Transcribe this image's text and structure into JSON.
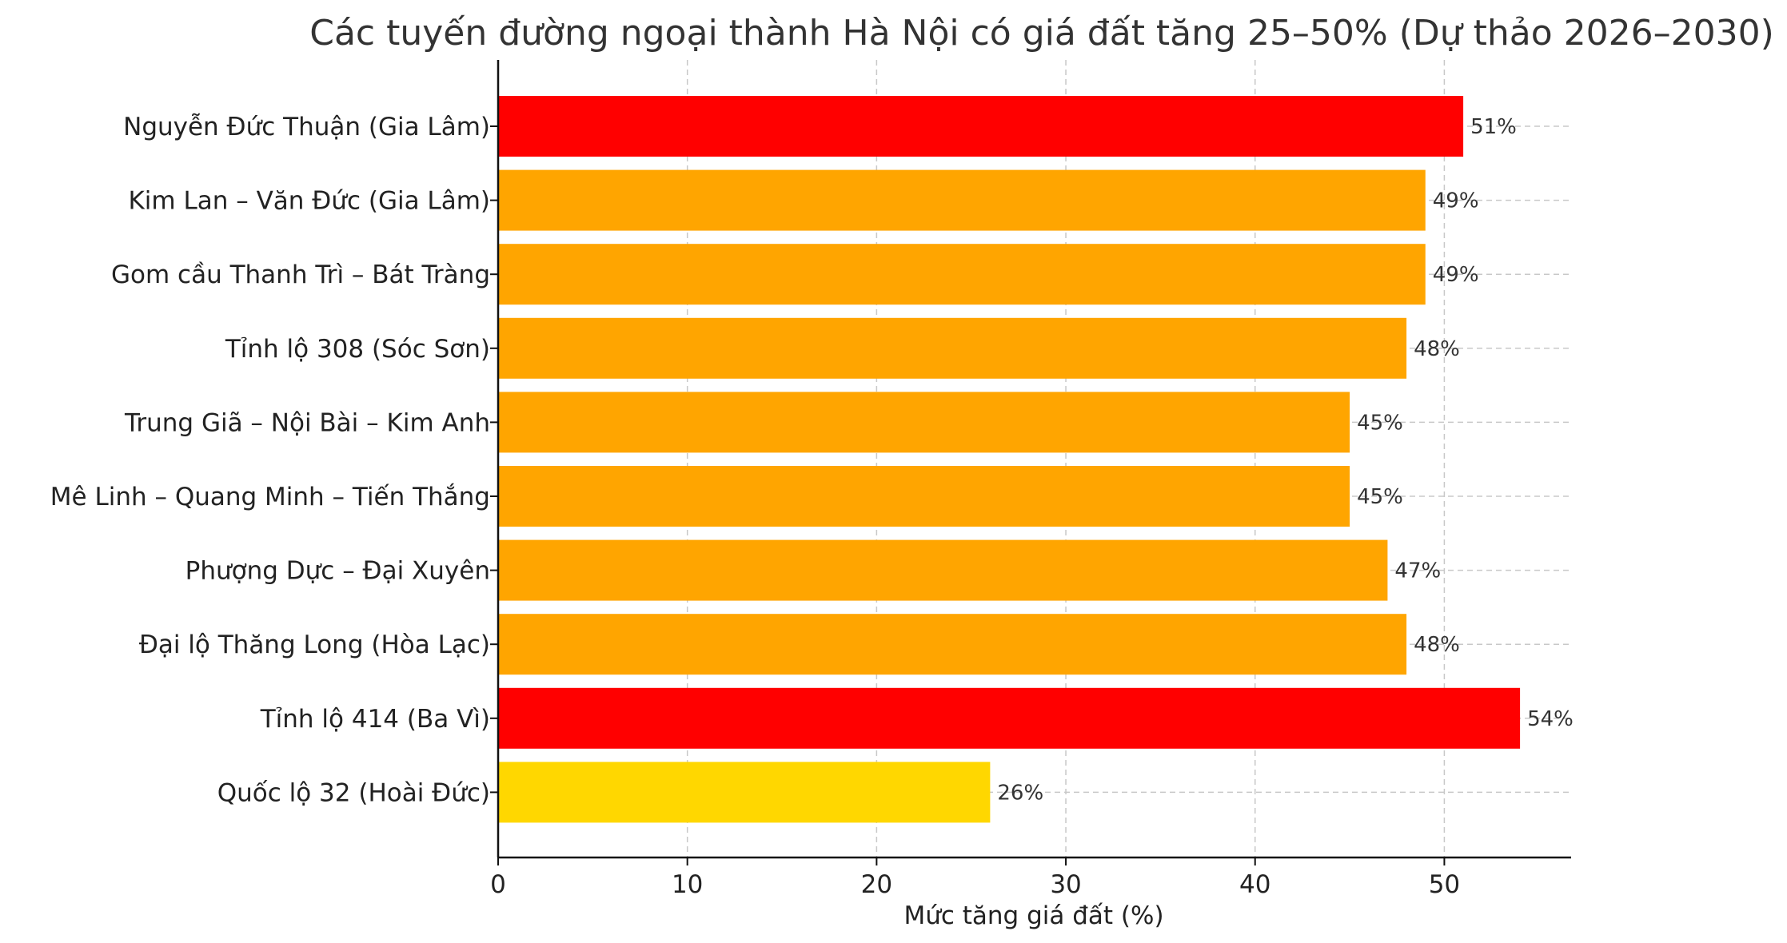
{
  "chart_data": {
    "type": "bar",
    "orientation": "horizontal",
    "title": "Các tuyến đường ngoại thành Hà Nội có giá đất tăng 25–50% (Dự thảo 2026–2030)",
    "xlabel": "Mức tăng giá đất (%)",
    "ylabel": "",
    "xlim": [
      0,
      56.7
    ],
    "xticks": [
      0,
      10,
      20,
      30,
      40,
      50
    ],
    "grid": true,
    "categories": [
      "Nguyễn Đức Thuận (Gia Lâm)",
      "Kim Lan – Văn Đức (Gia Lâm)",
      "Gom cầu Thanh Trì – Bát Tràng",
      "Tỉnh lộ 308 (Sóc Sơn)",
      "Trung Giã – Nội Bài – Kim Anh",
      "Mê Linh – Quang Minh – Tiến Thắng",
      "Phượng Dực – Đại Xuyên",
      "Đại lộ Thăng Long (Hòa Lạc)",
      "Tỉnh lộ 414 (Ba Vì)",
      "Quốc lộ 32 (Hoài Đức)"
    ],
    "values": [
      51,
      49,
      49,
      48,
      45,
      45,
      47,
      48,
      54,
      26
    ],
    "value_labels": [
      "51%",
      "49%",
      "49%",
      "48%",
      "45%",
      "45%",
      "47%",
      "48%",
      "54%",
      "26%"
    ],
    "colors": [
      "#ff0000",
      "#ffa500",
      "#ffa500",
      "#ffa500",
      "#ffa500",
      "#ffa500",
      "#ffa500",
      "#ffa500",
      "#ff0000",
      "#ffd700"
    ]
  }
}
